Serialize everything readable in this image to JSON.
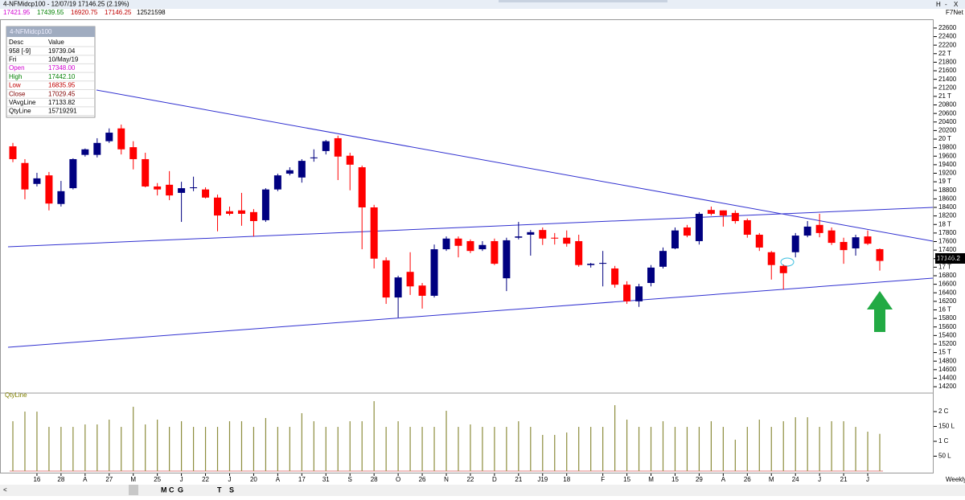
{
  "window": {
    "title": "4-NFMidcp100 - 12/07/19 17146.25 (2.19%)",
    "buttons": [
      "H",
      "-",
      "X"
    ],
    "brand": "F7Net"
  },
  "quote": {
    "open": "17421.95",
    "high": "17439.55",
    "low": "16920.75",
    "close": "17146.25",
    "volume": "12521598"
  },
  "price_badge": "17146.2",
  "info_box": {
    "title": "4-NFMidcp100",
    "rows": [
      [
        "Desc",
        "Value"
      ],
      [
        "958 [-9]",
        "19739.04"
      ],
      [
        "Fri",
        "10/May/19"
      ],
      [
        "Open",
        "17348.00"
      ],
      [
        "High",
        "17442.10"
      ],
      [
        "Low",
        "16835.95"
      ],
      [
        "Close",
        "17029.45"
      ],
      [
        "VAvgLine",
        "17133.82"
      ],
      [
        "QtyLine",
        "15719291"
      ]
    ]
  },
  "footer": {
    "period": "Weekly",
    "toolbar": [
      "M",
      "C",
      "G",
      "T",
      "S"
    ]
  },
  "chart_data": [
    {
      "type": "candlestick",
      "up_color": "#000080",
      "down_color": "#ff0000",
      "categories": [
        null,
        null,
        "16",
        null,
        "28",
        null,
        "A",
        null,
        "27",
        null,
        "M",
        null,
        "25",
        null,
        "J",
        null,
        "22",
        null,
        "J",
        null,
        "20",
        null,
        "A",
        null,
        "17",
        null,
        "31",
        null,
        "S",
        null,
        "28",
        null,
        "O",
        null,
        "26",
        null,
        "N",
        null,
        "22",
        null,
        "D",
        null,
        "21",
        null,
        "J19",
        null,
        "18",
        null,
        null,
        "F",
        null,
        "15",
        null,
        "M",
        null,
        "15",
        null,
        "29",
        null,
        "A",
        null,
        "26",
        null,
        "M",
        null,
        "24",
        null,
        "J",
        null,
        "21",
        null,
        "J",
        null
      ],
      "open": [
        19830,
        19440,
        18950,
        19150,
        18480,
        18850,
        19630,
        19630,
        19950,
        20250,
        19810,
        19530,
        18890,
        18930,
        18740,
        18850,
        18820,
        18630,
        18310,
        18330,
        18290,
        18100,
        18820,
        19190,
        19100,
        19550,
        19720,
        20020,
        19610,
        19340,
        18400,
        17160,
        16290,
        16890,
        16570,
        16330,
        17420,
        17670,
        17610,
        17420,
        17610,
        16740,
        17690,
        17760,
        17870,
        17690,
        17690,
        17610,
        17050,
        17080,
        16970,
        16590,
        16200,
        16630,
        17010,
        17440,
        17930,
        17610,
        18340,
        18330,
        18270,
        18100,
        17760,
        17350,
        17030,
        17350,
        17740,
        17990,
        17860,
        17590,
        17440,
        17720,
        17421.95
      ],
      "high": [
        19910,
        19530,
        19210,
        19230,
        19020,
        19550,
        19780,
        20020,
        20250,
        20340,
        19950,
        19680,
        18970,
        19250,
        19000,
        19120,
        18870,
        18700,
        18420,
        18740,
        18360,
        18850,
        19190,
        19340,
        19530,
        19760,
        19980,
        20080,
        19680,
        19380,
        18460,
        17230,
        16800,
        17350,
        16630,
        17530,
        17720,
        17720,
        17650,
        17610,
        17670,
        17690,
        18060,
        17870,
        17930,
        17800,
        17860,
        17760,
        17100,
        17380,
        17030,
        16670,
        16610,
        17050,
        17460,
        17930,
        17990,
        18290,
        18420,
        18330,
        18330,
        18140,
        17800,
        17380,
        17060,
        17800,
        18080,
        18250,
        17930,
        17690,
        17760,
        17860,
        17439.55
      ],
      "low": [
        19460,
        18590,
        18890,
        18330,
        18420,
        18820,
        19590,
        19570,
        19910,
        19640,
        19290,
        18870,
        18680,
        18570,
        18060,
        18780,
        18610,
        17840,
        18210,
        17970,
        17720,
        18060,
        18780,
        19150,
        18980,
        19470,
        19640,
        19040,
        18800,
        17420,
        16970,
        16140,
        15820,
        16350,
        16030,
        16290,
        17380,
        17230,
        17330,
        17380,
        17050,
        16440,
        17650,
        17270,
        17520,
        17530,
        17480,
        17010,
        16990,
        16550,
        16520,
        16140,
        16070,
        16550,
        16970,
        17420,
        17700,
        17530,
        18210,
        17950,
        18020,
        17690,
        17380,
        16710,
        16480,
        17230,
        17700,
        17700,
        17520,
        17080,
        17270,
        17520,
        16920.75
      ],
      "close": [
        19530,
        18820,
        19080,
        18490,
        18780,
        19530,
        19760,
        19910,
        20150,
        19760,
        19530,
        18890,
        18820,
        18680,
        18850,
        18870,
        18630,
        18210,
        18250,
        18250,
        18080,
        18820,
        19150,
        19270,
        19490,
        19570,
        19950,
        19590,
        19400,
        18400,
        17200,
        16290,
        16760,
        16550,
        16330,
        17420,
        17670,
        17500,
        17380,
        17520,
        17080,
        17630,
        17720,
        17820,
        17670,
        17670,
        17550,
        17050,
        17080,
        17100,
        16590,
        16200,
        16550,
        16990,
        17380,
        17860,
        17740,
        18250,
        18250,
        18210,
        18080,
        17760,
        17460,
        17050,
        16860,
        17740,
        17950,
        17800,
        17570,
        17400,
        17700,
        17550,
        17146.25
      ],
      "ylim": [
        14070,
        22730
      ],
      "yticks": [
        22600,
        22400,
        22200,
        {
          "value": 22000,
          "label": "22 T"
        },
        21800,
        21600,
        21400,
        21200,
        {
          "value": 21000,
          "label": "21 T"
        },
        20800,
        20600,
        20400,
        20200,
        {
          "value": 20000,
          "label": "20 T"
        },
        19800,
        19600,
        19400,
        19200,
        {
          "value": 19000,
          "label": "19 T"
        },
        18800,
        18600,
        18400,
        18200,
        {
          "value": 18000,
          "label": "18 T"
        },
        17800,
        17600,
        17400,
        17200,
        {
          "value": 17000,
          "label": "17 T"
        },
        16800,
        16600,
        16400,
        16200,
        {
          "value": 16000,
          "label": "16 T"
        },
        15800,
        15600,
        15400,
        15200,
        {
          "value": 15000,
          "label": "15 T"
        },
        14800,
        14600,
        14400,
        14200
      ]
    },
    {
      "type": "bar",
      "title": "QtyLine",
      "color": "#8c8c3c",
      "values": [
        16760000,
        20000000,
        20000000,
        14860000,
        14860000,
        14860000,
        15680000,
        15680000,
        17300000,
        14860000,
        21620000,
        15680000,
        17300000,
        14860000,
        16760000,
        14860000,
        14860000,
        14860000,
        16760000,
        16760000,
        14860000,
        17840000,
        14860000,
        14860000,
        19460000,
        16760000,
        14860000,
        14860000,
        16760000,
        16760000,
        23510000,
        14860000,
        16760000,
        14860000,
        14860000,
        14860000,
        20270000,
        14860000,
        15680000,
        14860000,
        14860000,
        14860000,
        16760000,
        14860000,
        12160000,
        12160000,
        12970000,
        14860000,
        14860000,
        14860000,
        22160000,
        17300000,
        14860000,
        14860000,
        16760000,
        14860000,
        14860000,
        14860000,
        16760000,
        14860000,
        10540000,
        14860000,
        17300000,
        14860000,
        16760000,
        18110000,
        18110000,
        14860000,
        16760000,
        16760000,
        14860000,
        13240000,
        12521598
      ],
      "ylim": [
        0,
        24600000
      ],
      "yticks": [
        {
          "value": 20000000,
          "label": "2 C"
        },
        {
          "value": 15000000,
          "label": "150 L"
        },
        {
          "value": 10000000,
          "label": "1 C"
        },
        {
          "value": 5000000,
          "label": "50 L"
        }
      ]
    }
  ]
}
